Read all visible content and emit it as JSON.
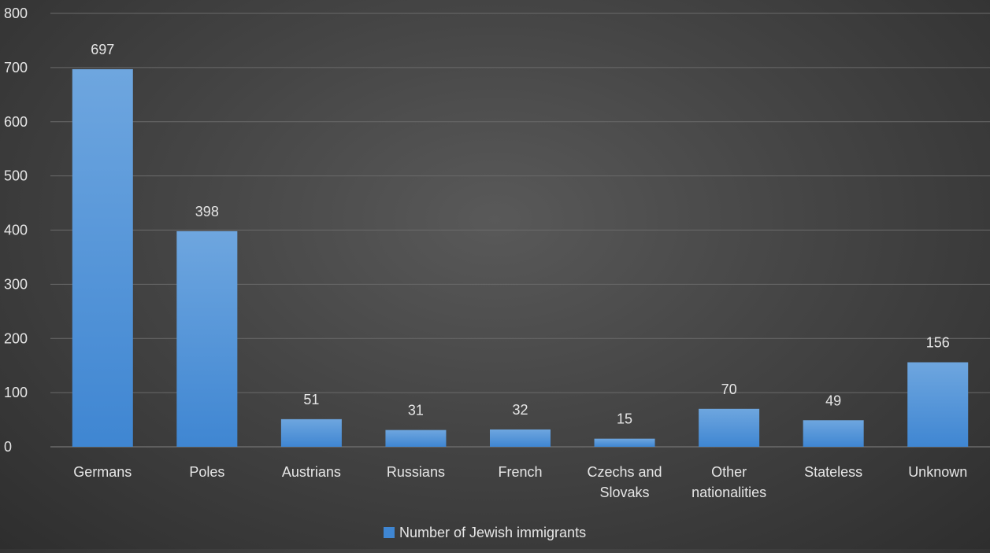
{
  "chart_data": {
    "type": "bar",
    "categories": [
      [
        "Germans"
      ],
      [
        "Poles"
      ],
      [
        "Austrians"
      ],
      [
        "Russians"
      ],
      [
        "French"
      ],
      [
        "Czechs and",
        "Slovaks"
      ],
      [
        "Other",
        "nationalities"
      ],
      [
        "Stateless"
      ],
      [
        "Unknown"
      ]
    ],
    "series": [
      {
        "name": "Number of Jewish immigrants",
        "values": [
          697,
          398,
          51,
          31,
          32,
          15,
          70,
          49,
          156
        ],
        "color": "#4a90d9"
      }
    ],
    "ylim": [
      0,
      800
    ],
    "yticks": [
      0,
      100,
      200,
      300,
      400,
      500,
      600,
      700,
      800
    ],
    "grid": true,
    "legend_position": "bottom"
  },
  "colors": {
    "gridline": "#6a6a6a",
    "text": "#e6e6e6",
    "bar_top": "#6ea6df",
    "bar_bottom": "#3f86d2"
  }
}
